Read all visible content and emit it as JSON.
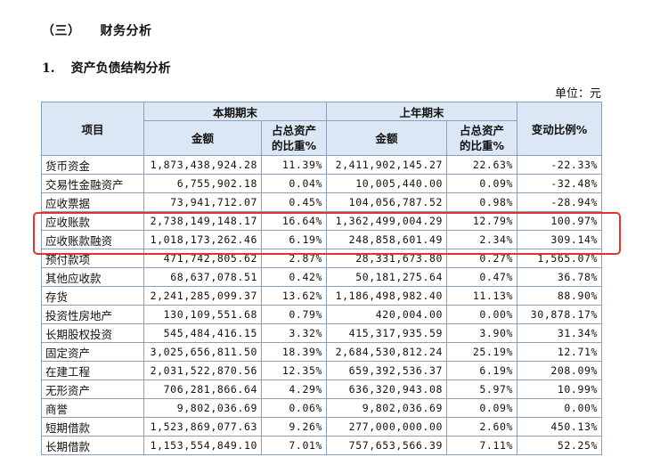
{
  "section_heading": {
    "num": "（三）",
    "title": "财务分析"
  },
  "sub_heading": {
    "num": "1.",
    "title": "资产负债结构分析"
  },
  "unit_label": "单位：元",
  "highlight_color": "#e03333",
  "table": {
    "headers": {
      "item": "项目",
      "current_period": "本期期末",
      "prior_year": "上年期末",
      "change_ratio": "变动比例%",
      "amount": "金额",
      "share_line1": "占总资产",
      "share_line2": "的比重%"
    },
    "rows": [
      {
        "name": "货币资金",
        "cur_amount": "1,873,438,924.28",
        "cur_pct": "11.39%",
        "prev_amount": "2,411,902,145.27",
        "prev_pct": "22.63%",
        "change": "-22.33%"
      },
      {
        "name": "交易性金融资产",
        "cur_amount": "6,755,902.18",
        "cur_pct": "0.04%",
        "prev_amount": "10,005,440.00",
        "prev_pct": "0.09%",
        "change": "-32.48%"
      },
      {
        "name": "应收票据",
        "cur_amount": "73,941,712.07",
        "cur_pct": "0.45%",
        "prev_amount": "104,056,787.52",
        "prev_pct": "0.98%",
        "change": "-28.94%"
      },
      {
        "name": "应收账款",
        "cur_amount": "2,738,149,148.17",
        "cur_pct": "16.64%",
        "prev_amount": "1,362,499,004.29",
        "prev_pct": "12.79%",
        "change": "100.97%"
      },
      {
        "name": "应收账款融资",
        "cur_amount": "1,018,173,262.46",
        "cur_pct": "6.19%",
        "prev_amount": "248,858,601.49",
        "prev_pct": "2.34%",
        "change": "309.14%"
      },
      {
        "name": "预付款项",
        "cur_amount": "471,742,805.62",
        "cur_pct": "2.87%",
        "prev_amount": "28,331,673.80",
        "prev_pct": "0.27%",
        "change": "1,565.07%"
      },
      {
        "name": "其他应收款",
        "cur_amount": "68,637,078.51",
        "cur_pct": "0.42%",
        "prev_amount": "50,181,275.64",
        "prev_pct": "0.47%",
        "change": "36.78%"
      },
      {
        "name": "存货",
        "cur_amount": "2,241,285,099.37",
        "cur_pct": "13.62%",
        "prev_amount": "1,186,498,982.40",
        "prev_pct": "11.13%",
        "change": "88.90%"
      },
      {
        "name": "投资性房地产",
        "cur_amount": "130,109,551.68",
        "cur_pct": "0.79%",
        "prev_amount": "420,004.00",
        "prev_pct": "0.00%",
        "change": "30,878.17%"
      },
      {
        "name": "长期股权投资",
        "cur_amount": "545,484,416.15",
        "cur_pct": "3.32%",
        "prev_amount": "415,317,935.59",
        "prev_pct": "3.90%",
        "change": "31.34%"
      },
      {
        "name": "固定资产",
        "cur_amount": "3,025,656,811.50",
        "cur_pct": "18.39%",
        "prev_amount": "2,684,530,812.24",
        "prev_pct": "25.19%",
        "change": "12.71%"
      },
      {
        "name": "在建工程",
        "cur_amount": "2,031,522,870.56",
        "cur_pct": "12.35%",
        "prev_amount": "659,392,536.37",
        "prev_pct": "6.19%",
        "change": "208.09%"
      },
      {
        "name": "无形资产",
        "cur_amount": "706,281,866.64",
        "cur_pct": "4.29%",
        "prev_amount": "636,320,943.08",
        "prev_pct": "5.97%",
        "change": "10.99%"
      },
      {
        "name": "商誉",
        "cur_amount": "9,802,036.69",
        "cur_pct": "0.06%",
        "prev_amount": "9,802,036.69",
        "prev_pct": "0.09%",
        "change": "0.00%"
      },
      {
        "name": "短期借款",
        "cur_amount": "1,523,869,077.63",
        "cur_pct": "9.26%",
        "prev_amount": "277,000,000.00",
        "prev_pct": "2.60%",
        "change": "450.13%"
      },
      {
        "name": "长期借款",
        "cur_amount": "1,153,554,849.10",
        "cur_pct": "7.01%",
        "prev_amount": "757,653,566.39",
        "prev_pct": "7.11%",
        "change": "52.25%"
      }
    ]
  }
}
